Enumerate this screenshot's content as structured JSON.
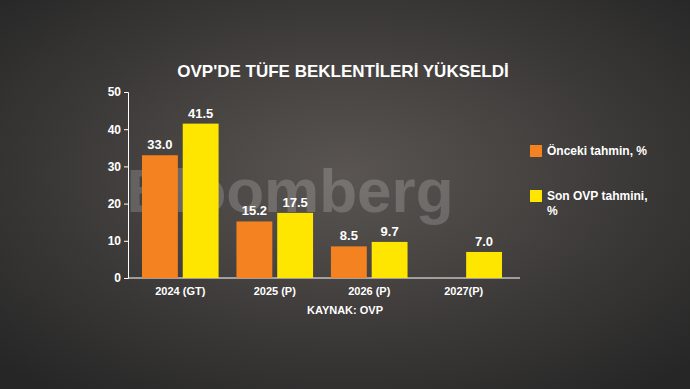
{
  "chart_data": {
    "type": "bar",
    "title": "OVP'DE TÜFE BEKLENTİLERİ YÜKSELDİ",
    "source": "KAYNAK: OVP",
    "watermark": "Bloomberg",
    "categories": [
      "2024 (GT)",
      "2025 (P)",
      "2026 (P)",
      "2027(P)"
    ],
    "series": [
      {
        "name": "Önceki tahmin, %",
        "color": "#f58220",
        "values": [
          33.0,
          15.2,
          8.5,
          null
        ],
        "value_labels": [
          "33.0",
          "15.2",
          "8.5",
          null
        ]
      },
      {
        "name": "Son OVP tahmini, %",
        "color": "#ffe600",
        "values": [
          41.5,
          17.5,
          9.7,
          7.0
        ],
        "value_labels": [
          "41.5",
          "17.5",
          "9.7",
          "7.0"
        ]
      }
    ],
    "ylim": [
      0,
      50
    ],
    "yticks": [
      0,
      10,
      20,
      30,
      40,
      50
    ],
    "grid": false,
    "data_labels": true,
    "legend": "right"
  }
}
